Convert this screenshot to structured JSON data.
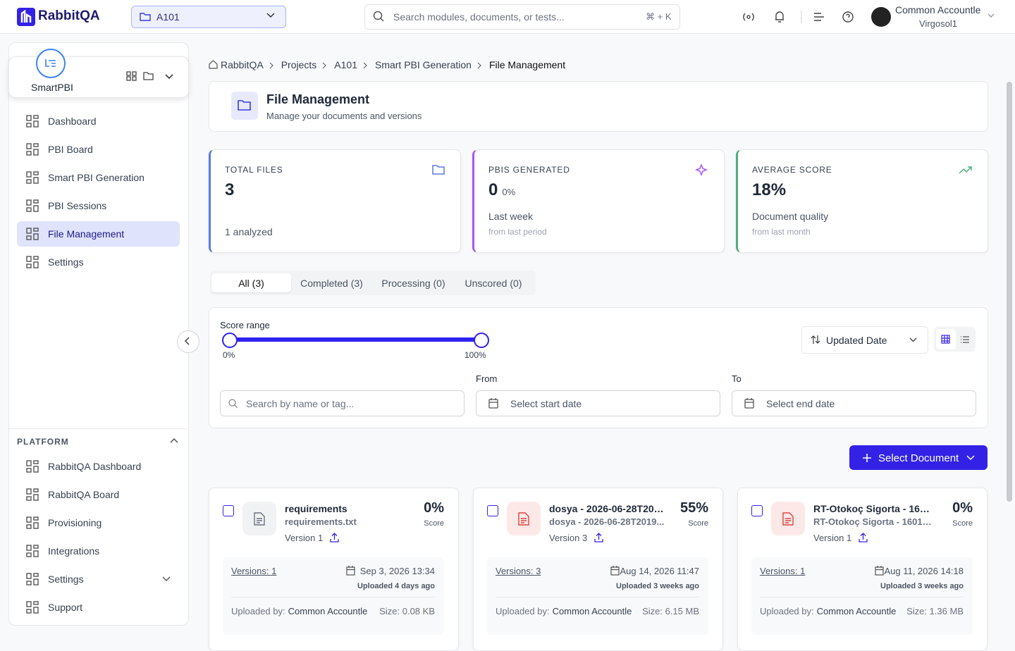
{
  "header": {
    "brand": "RabbitQA",
    "project": "A101",
    "search_placeholder": "Search modules, documents, or tests...",
    "shortcut": "⌘ + K",
    "user_name": "Common Accountle",
    "user_org": "Virgosol1"
  },
  "sidebar": {
    "module": "SmartPBI",
    "active_nav": 4,
    "nav": [
      "Dashboard",
      "PBI Board",
      "Smart PBI Generation",
      "PBI Sessions",
      "File Management",
      "Settings"
    ],
    "platform_title": "PLATFORM",
    "platform_nav": [
      "RabbitQA Dashboard",
      "RabbitQA Board",
      "Provisioning",
      "Integrations",
      "Settings",
      "Support"
    ]
  },
  "breadcrumb": [
    "RabbitQA",
    "Projects",
    "A101",
    "Smart PBI Generation",
    "File Management"
  ],
  "page": {
    "title": "File Management",
    "subtitle": "Manage your documents and versions"
  },
  "stats": [
    {
      "label": "TOTAL FILES",
      "value": "3",
      "note": "1 analyzed",
      "color": "#5b7be0"
    },
    {
      "label": "PBIS GENERATED",
      "value": "0",
      "pct": "0%",
      "note": "Last week",
      "sub": "from last period",
      "color": "#a855f7"
    },
    {
      "label": "AVERAGE SCORE",
      "value": "18%",
      "note": "Document quality",
      "sub": "from last month",
      "color": "#4caf7d"
    }
  ],
  "tabs": [
    "All (3)",
    "Completed (3)",
    "Processing (0)",
    "Unscored (0)"
  ],
  "filters": {
    "score_label": "Score range",
    "min": "0%",
    "max": "100%",
    "sort": "Updated Date",
    "search_placeholder": "Search by name or tag...",
    "from_label": "From",
    "from_placeholder": "Select start date",
    "to_label": "To",
    "to_placeholder": "Select end date"
  },
  "select_button": "Select Document",
  "files": [
    {
      "name": "requirements",
      "filename": "requirements.txt",
      "score": "0%",
      "score_label": "Score",
      "version": "Version 1",
      "versions": "Versions: 1",
      "date": "Sep 3, 2026 13:34",
      "uploaded": "Uploaded 4 days ago",
      "uploader_label": "Uploaded by:",
      "uploader": "Common Accountle",
      "size": "Size: 0.08 KB",
      "icon_color": "#6b7280"
    },
    {
      "name": "dosya - 2026-06-28T2019...",
      "filename": "dosya - 2026-06-28T2019...",
      "score": "55%",
      "score_label": "Score",
      "version": "Version 3",
      "versions": "Versions: 3",
      "date": "Aug 14, 2026 11:47",
      "uploaded": "Uploaded 3 weeks ago",
      "uploader_label": "Uploaded by:",
      "uploader": "Common Accountle",
      "size": "Size: 6.15 MB",
      "icon_color": "#e0443e"
    },
    {
      "name": "RT-Otokoç Sigorta - 1601 Ek...",
      "filename": "RT-Otokoç Sigorta - 1601 Ek...",
      "score": "0%",
      "score_label": "Score",
      "version": "Version 1",
      "versions": "Versions: 1",
      "date": "Aug 11, 2026 14:18",
      "uploaded": "Uploaded 3 weeks ago",
      "uploader_label": "Uploaded by:",
      "uploader": "Common Accountle",
      "size": "Size: 1.36 MB",
      "icon_color": "#e0443e"
    }
  ]
}
